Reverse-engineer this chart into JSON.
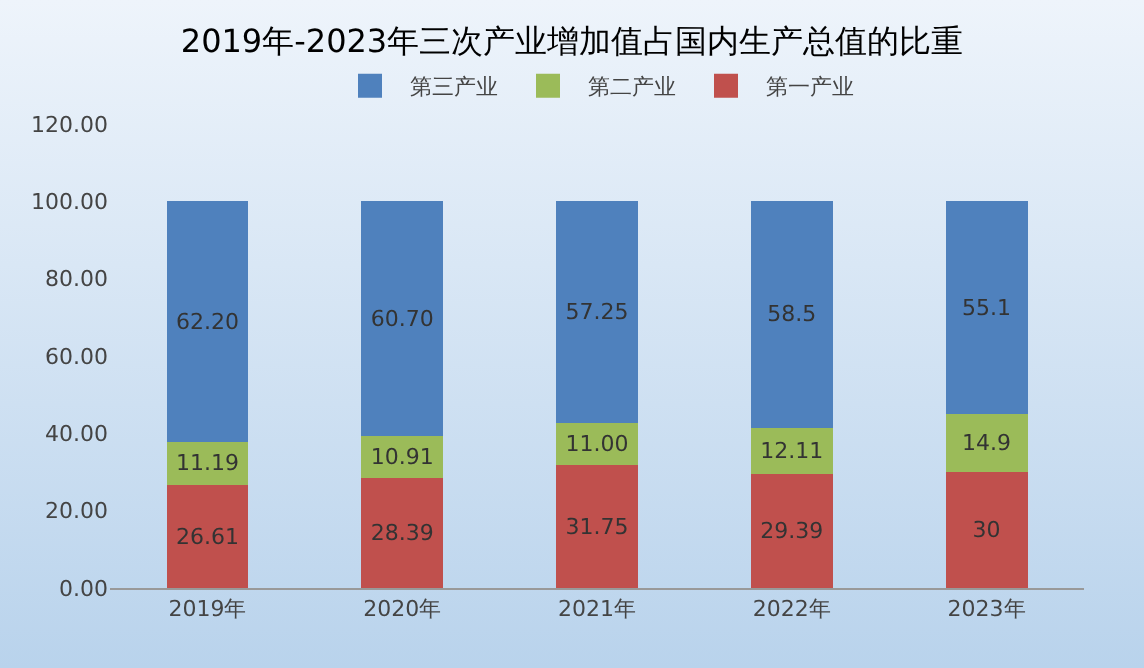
{
  "chart_data": {
    "type": "bar",
    "title": "2019年-2023年三次产业增加值占国内生产总值的比重",
    "categories": [
      "2019年",
      "2020年",
      "2021年",
      "2022年",
      "2023年"
    ],
    "stacked": true,
    "series": [
      {
        "name": "第一产业",
        "color": "#c0504d",
        "values": [
          26.61,
          28.39,
          31.75,
          29.39,
          30
        ],
        "value_labels": [
          "26.61",
          "28.39",
          "31.75",
          "29.39",
          "30"
        ]
      },
      {
        "name": "第二产业",
        "color": "#9bbb59",
        "values": [
          11.19,
          10.91,
          11.0,
          12.11,
          14.9
        ],
        "value_labels": [
          "11.19",
          "10.91",
          "11.00",
          "12.11",
          "14.9"
        ]
      },
      {
        "name": "第三产业",
        "color": "#4f81bd",
        "values": [
          62.2,
          60.7,
          57.25,
          58.5,
          55.1
        ],
        "value_labels": [
          "62.20",
          "60.70",
          "57.25",
          "58.5",
          "55.1"
        ]
      }
    ],
    "ylim": [
      0,
      120
    ],
    "yticks": [
      {
        "value": 0,
        "label": "0.00"
      },
      {
        "value": 20,
        "label": "20.00"
      },
      {
        "value": 40,
        "label": "40.00"
      },
      {
        "value": 60,
        "label": "60.00"
      },
      {
        "value": 80,
        "label": "80.00"
      },
      {
        "value": 100,
        "label": "100.00"
      },
      {
        "value": 120,
        "label": "120.00"
      }
    ],
    "grid": false,
    "legend": "top"
  }
}
